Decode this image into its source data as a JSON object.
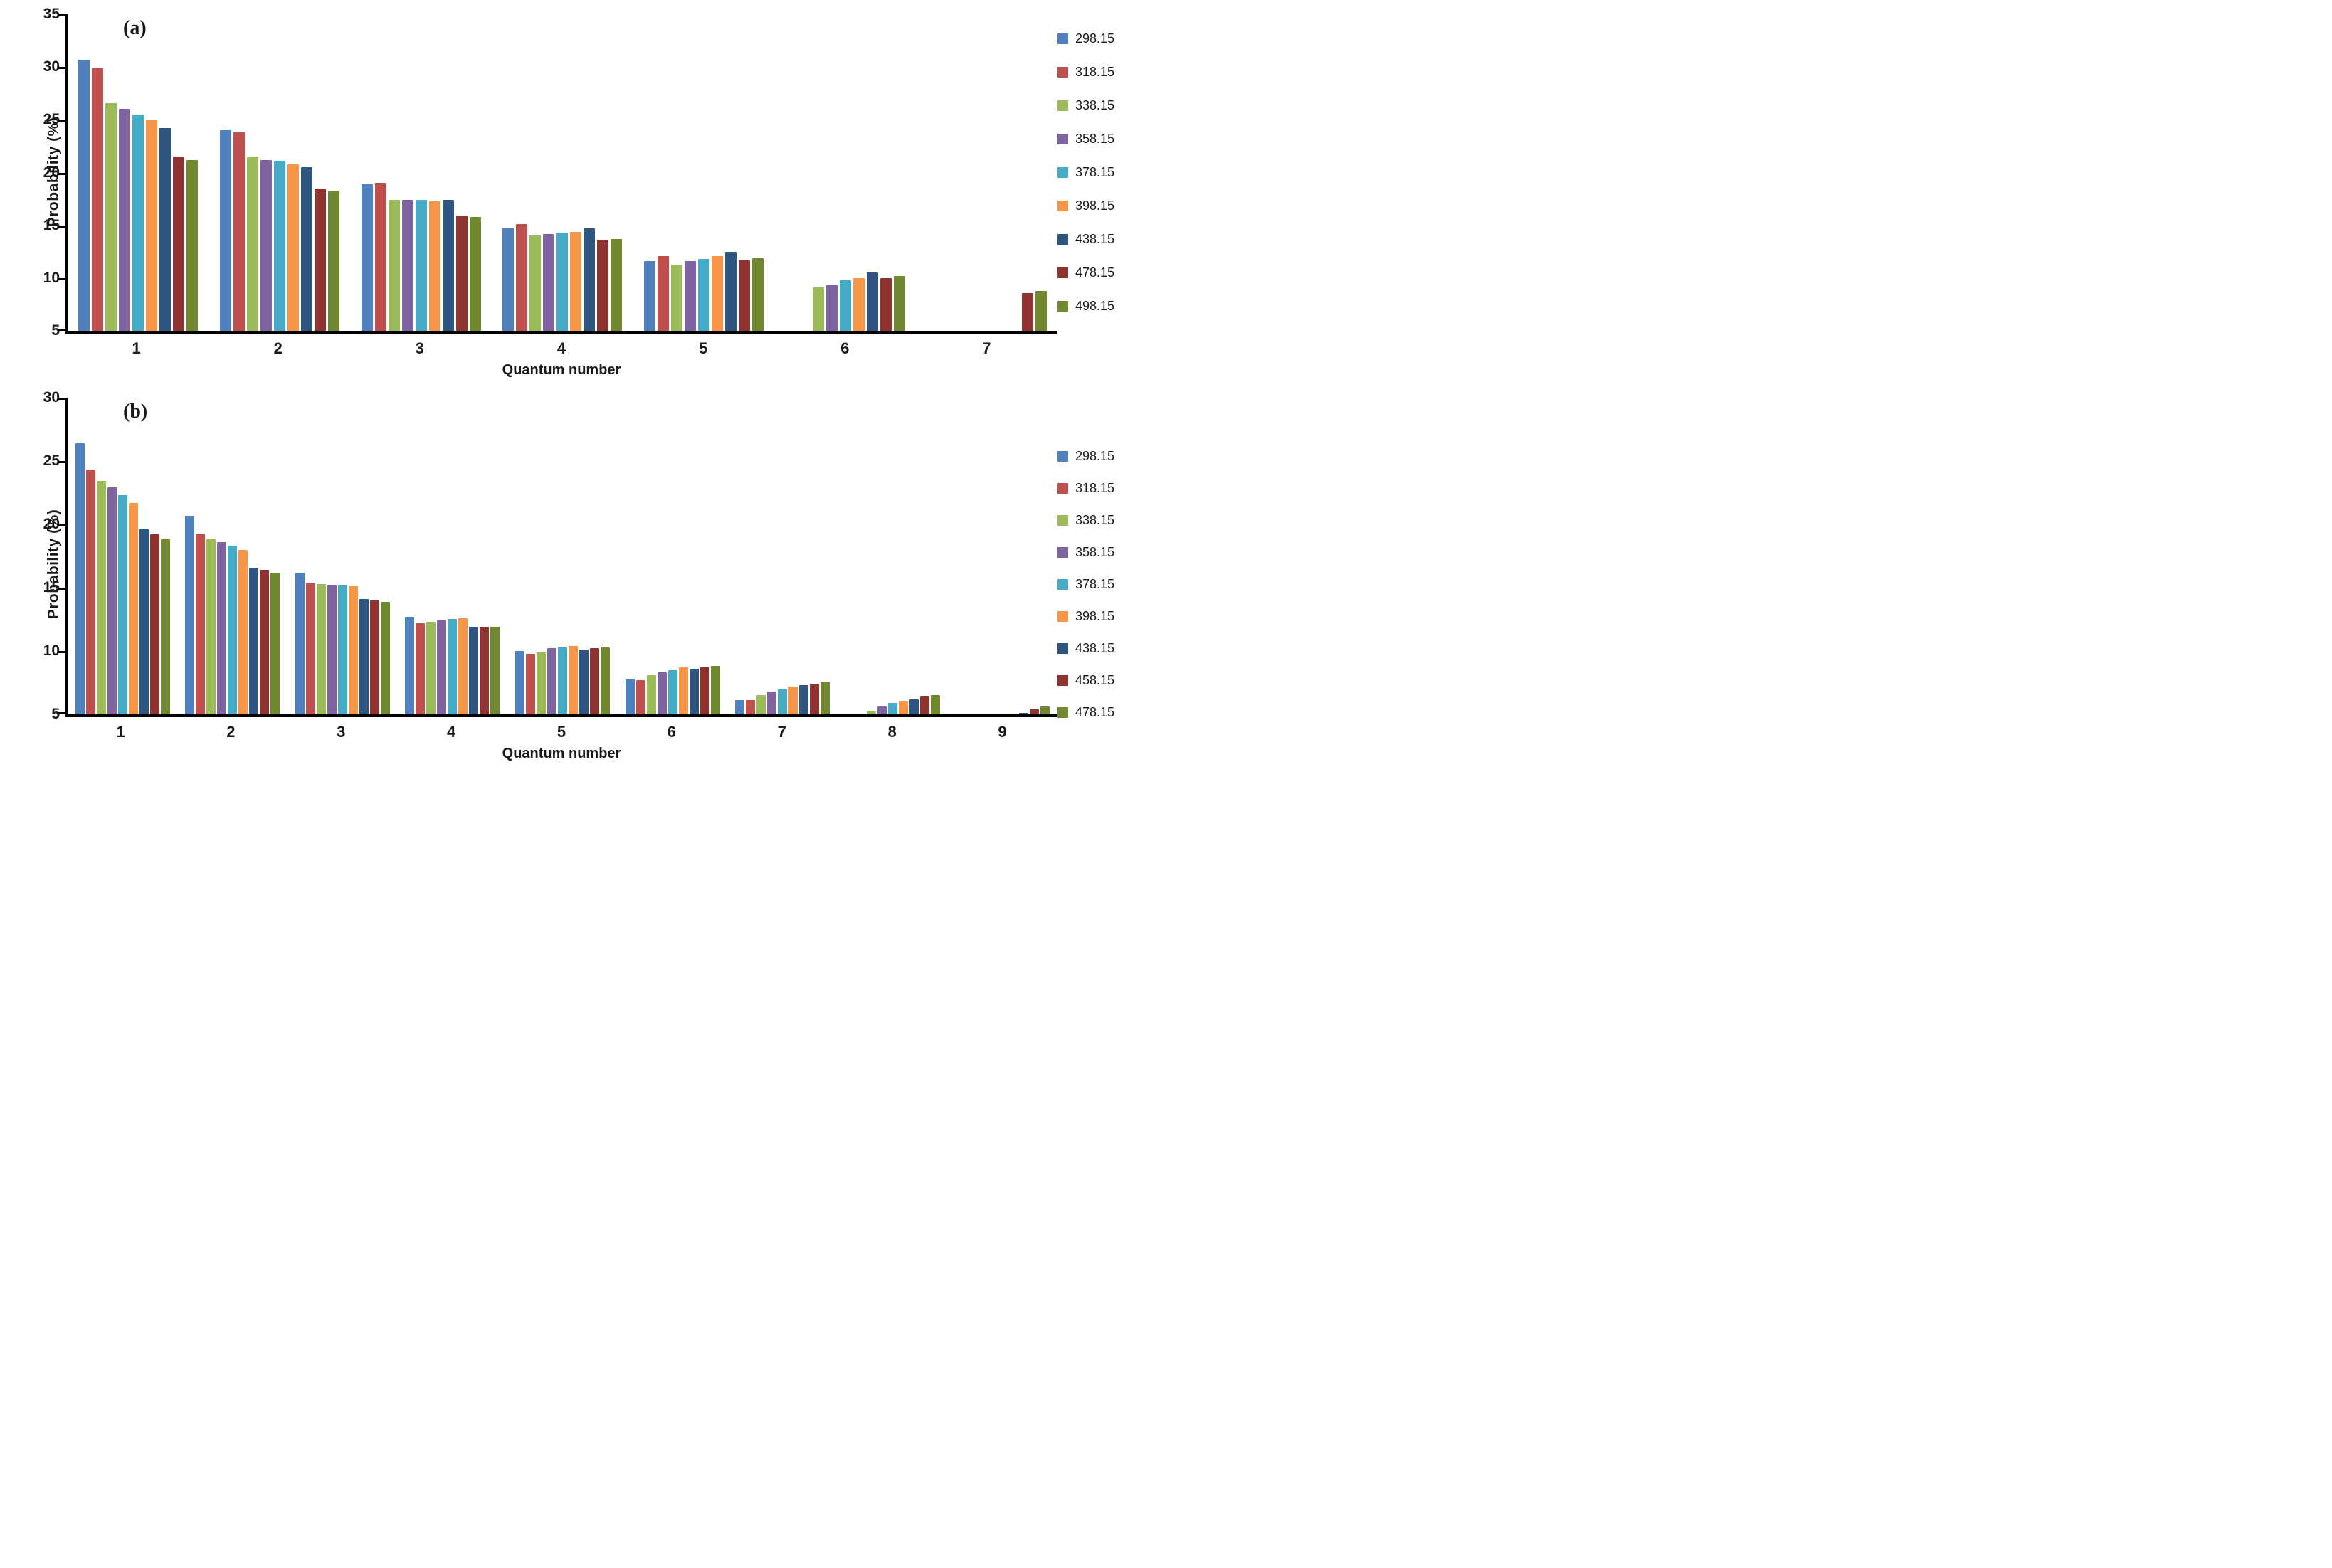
{
  "figure": {
    "background": "#ffffff",
    "axis_color": "#000000",
    "text_color": "#1a1a1a"
  },
  "chart_data": [
    {
      "id": "a",
      "type": "bar",
      "panel_label": "(a)",
      "xlabel": "Quantum number",
      "ylabel": "Probability (%)",
      "ylim": [
        5,
        35
      ],
      "yticks": [
        35,
        30,
        25,
        20,
        15,
        10,
        5
      ],
      "categories": [
        "1",
        "2",
        "3",
        "4",
        "5",
        "6",
        "7"
      ],
      "grid": false,
      "legend_position": "right",
      "series": [
        {
          "name": "298.15",
          "color": "#4e81bd",
          "values": [
            30.7,
            24.0,
            18.9,
            14.8,
            11.6,
            null,
            null
          ]
        },
        {
          "name": "318.15",
          "color": "#c0504d",
          "values": [
            29.9,
            23.8,
            19.0,
            15.1,
            12.1,
            null,
            null
          ]
        },
        {
          "name": "338.15",
          "color": "#9bbb59",
          "values": [
            26.6,
            21.5,
            17.4,
            14.0,
            11.3,
            9.1,
            null
          ]
        },
        {
          "name": "358.15",
          "color": "#8064a2",
          "values": [
            26.0,
            21.2,
            17.4,
            14.2,
            11.6,
            9.4,
            null
          ]
        },
        {
          "name": "378.15",
          "color": "#45aac5",
          "values": [
            25.5,
            21.1,
            17.4,
            14.3,
            11.8,
            9.8,
            null
          ]
        },
        {
          "name": "398.15",
          "color": "#f79646",
          "values": [
            25.0,
            20.8,
            17.3,
            14.4,
            12.1,
            10.0,
            null
          ]
        },
        {
          "name": "438.15",
          "color": "#2e5680",
          "values": [
            24.2,
            20.5,
            17.4,
            14.7,
            12.5,
            10.5,
            null
          ]
        },
        {
          "name": "478.15",
          "color": "#8f3331",
          "values": [
            21.5,
            18.5,
            15.9,
            13.6,
            11.7,
            10.0,
            8.6
          ]
        },
        {
          "name": "498.15",
          "color": "#70882f",
          "values": [
            21.2,
            18.3,
            15.8,
            13.7,
            11.9,
            10.2,
            8.8
          ]
        }
      ]
    },
    {
      "id": "b",
      "type": "bar",
      "panel_label": "(b)",
      "xlabel": "Quantum number",
      "ylabel": "Probability (%)",
      "ylim": [
        5,
        30
      ],
      "yticks": [
        30,
        25,
        20,
        15,
        10,
        5
      ],
      "categories": [
        "1",
        "2",
        "3",
        "4",
        "5",
        "6",
        "7",
        "8",
        "9"
      ],
      "grid": false,
      "legend_position": "right",
      "series": [
        {
          "name": "298.15",
          "color": "#4e81bd",
          "values": [
            26.4,
            20.7,
            16.2,
            12.7,
            10.0,
            7.8,
            6.1,
            null,
            null
          ]
        },
        {
          "name": "318.15",
          "color": "#c0504d",
          "values": [
            24.3,
            19.2,
            15.4,
            12.2,
            9.8,
            7.7,
            6.1,
            null,
            null
          ]
        },
        {
          "name": "338.15",
          "color": "#9bbb59",
          "values": [
            23.4,
            18.9,
            15.3,
            12.3,
            9.9,
            8.1,
            6.5,
            5.2,
            null
          ]
        },
        {
          "name": "358.15",
          "color": "#8064a2",
          "values": [
            22.9,
            18.6,
            15.2,
            12.4,
            10.2,
            8.3,
            6.8,
            5.6,
            null
          ]
        },
        {
          "name": "378.15",
          "color": "#45aac5",
          "values": [
            22.3,
            18.3,
            15.2,
            12.5,
            10.3,
            8.5,
            7.0,
            5.9,
            null
          ]
        },
        {
          "name": "398.15",
          "color": "#f79646",
          "values": [
            21.7,
            18.0,
            15.1,
            12.6,
            10.4,
            8.7,
            7.2,
            6.0,
            null
          ]
        },
        {
          "name": "438.15",
          "color": "#2e5680",
          "values": [
            19.6,
            16.6,
            14.1,
            11.9,
            10.1,
            8.6,
            7.3,
            6.2,
            5.1
          ]
        },
        {
          "name": "458.15",
          "color": "#8f3331",
          "values": [
            19.2,
            16.4,
            14.0,
            11.9,
            10.2,
            8.7,
            7.4,
            6.4,
            5.4
          ]
        },
        {
          "name": "478.15",
          "color": "#70882f",
          "values": [
            18.9,
            16.2,
            13.9,
            11.9,
            10.3,
            8.8,
            7.6,
            6.5,
            5.6
          ]
        }
      ]
    }
  ]
}
